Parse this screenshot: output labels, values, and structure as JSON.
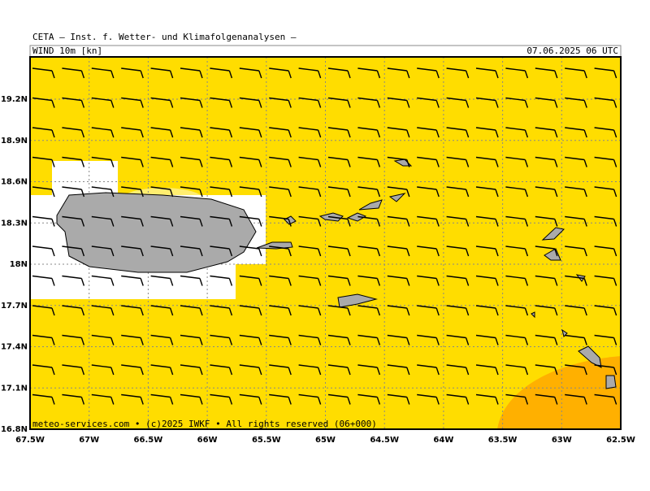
{
  "header": {
    "title": "CETA — Inst. f. Wetter- und Klimafolgenanalysen —",
    "variable": "WIND 10m [kn]",
    "datetime": "07.06.2025 06 UTC"
  },
  "map": {
    "lat_labels": [
      "19.2N",
      "18.9N",
      "18.6N",
      "18.3N",
      "18N",
      "17.7N",
      "17.4N",
      "17.1N",
      "16.8N"
    ],
    "lon_labels": [
      "67.5W",
      "67W",
      "66.5W",
      "66W",
      "65.5W",
      "65W",
      "64.5W",
      "64W",
      "63.5W",
      "63W",
      "62.5W"
    ],
    "footer": "meteo-services.com • (c)2025 IWKF • All rights reserved (06+000)"
  }
}
